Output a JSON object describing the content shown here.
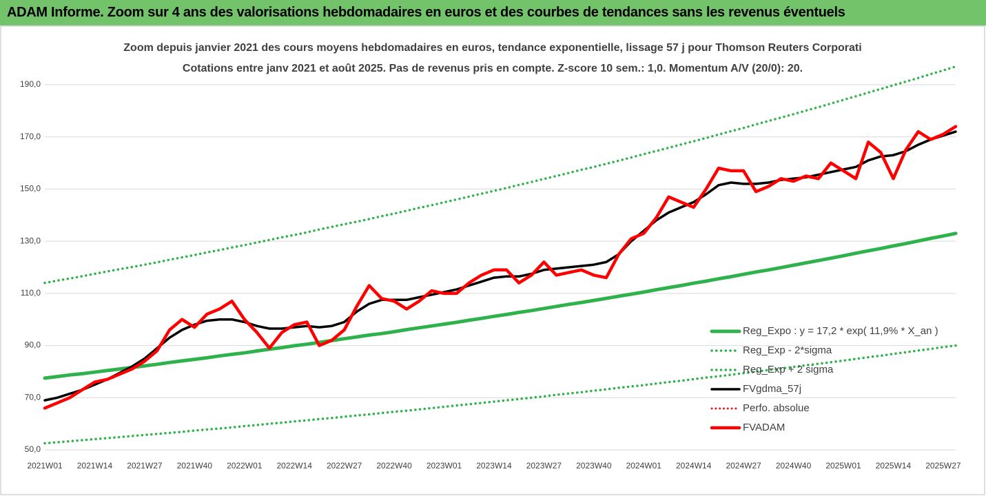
{
  "banner": "ADAM Informe. Zoom sur 4 ans des valorisations hebdomadaires en euros et des courbes de tendances sans les revenus éventuels",
  "chart_data": {
    "type": "line",
    "title": "Zoom depuis janvier 2021 des cours moyens hebdomadaires en euros, tendance exponentielle, lissage 57 j pour Thomson Reuters Corporati",
    "subtitle": "Cotations entre janv 2021 et août 2025. Pas de revenus pris en compte. Z-score 10 sem.: 1,0. Momentum A/V (20/0): 20.",
    "categories": [
      "2021W01",
      null,
      null,
      null,
      "2021W14",
      null,
      null,
      null,
      "2021W27",
      null,
      null,
      null,
      "2021W40",
      null,
      null,
      null,
      "2022W01",
      null,
      null,
      null,
      "2022W14",
      null,
      null,
      null,
      "2022W27",
      null,
      null,
      null,
      "2022W40",
      null,
      null,
      null,
      "2023W01",
      null,
      null,
      null,
      "2023W14",
      null,
      null,
      null,
      "2023W27",
      null,
      null,
      null,
      "2023W40",
      null,
      null,
      null,
      "2024W01",
      null,
      null,
      null,
      "2024W14",
      null,
      null,
      null,
      "2024W27",
      null,
      null,
      null,
      "2024W40",
      null,
      null,
      null,
      "2025W01",
      null,
      null,
      null,
      "2025W14",
      null,
      null,
      null,
      "2025W27",
      null
    ],
    "ylim": [
      50,
      199
    ],
    "yticks": [
      {
        "value": 50,
        "label": "50,0"
      },
      {
        "value": 70,
        "label": "70,0"
      },
      {
        "value": 90,
        "label": "90,0"
      },
      {
        "value": 110,
        "label": "110,0"
      },
      {
        "value": 130,
        "label": "130,0"
      },
      {
        "value": 150,
        "label": "150,0"
      },
      {
        "value": 170,
        "label": "170,0"
      },
      {
        "value": 190,
        "label": "190,0"
      }
    ],
    "grid": true,
    "legend": "lower right",
    "series": [
      {
        "name": "Reg_Expo : y = 17,2 * exp( 11,9% *  X_an )",
        "color": "#2fb24c",
        "dash": "solid",
        "width": 5,
        "values": [
          77.5,
          78.1,
          78.7,
          79.2,
          79.8,
          80.4,
          81.0,
          81.6,
          82.2,
          82.8,
          83.5,
          84.1,
          84.7,
          85.3,
          86.0,
          86.6,
          87.2,
          87.9,
          88.6,
          89.2,
          89.9,
          90.5,
          91.2,
          91.9,
          92.6,
          93.3,
          94.0,
          94.6,
          95.3,
          96.1,
          96.8,
          97.5,
          98.2,
          98.9,
          99.7,
          100.4,
          101.2,
          101.9,
          102.7,
          103.4,
          104.2,
          105.0,
          105.8,
          106.5,
          107.3,
          108.1,
          108.9,
          109.7,
          110.5,
          111.4,
          112.2,
          113.0,
          113.9,
          114.7,
          115.6,
          116.4,
          117.3,
          118.2,
          119.0,
          119.9,
          120.8,
          121.7,
          122.6,
          123.5,
          124.4,
          125.4,
          126.3,
          127.2,
          128.2,
          129.1,
          130.1,
          131.1,
          132.0,
          133.0
        ]
      },
      {
        "name": "Reg_Exp - 2*sigma",
        "color": "#2fb24c",
        "dash": "dotted",
        "width": 3.5,
        "values": [
          52.5,
          52.9,
          53.3,
          53.7,
          54.1,
          54.5,
          54.9,
          55.3,
          55.7,
          56.1,
          56.5,
          56.9,
          57.4,
          57.8,
          58.2,
          58.6,
          59.1,
          59.5,
          60.0,
          60.4,
          60.9,
          61.3,
          61.8,
          62.2,
          62.7,
          63.2,
          63.6,
          64.1,
          64.6,
          65.0,
          65.5,
          66.0,
          66.5,
          67.0,
          67.5,
          68.0,
          68.5,
          69.0,
          69.5,
          70.0,
          70.5,
          71.1,
          71.6,
          72.1,
          72.7,
          73.2,
          73.8,
          74.3,
          74.8,
          75.4,
          76.0,
          76.5,
          77.1,
          77.7,
          78.2,
          78.8,
          79.4,
          80.0,
          80.6,
          81.2,
          81.8,
          82.4,
          83.0,
          83.6,
          84.2,
          84.9,
          85.5,
          86.1,
          86.8,
          87.4,
          88.1,
          88.7,
          89.4,
          90.0
        ]
      },
      {
        "name": "Reg_Exp + 2 sigma",
        "color": "#2fb24c",
        "dash": "dotted",
        "width": 3.5,
        "values": [
          114.0,
          114.9,
          115.7,
          116.6,
          117.5,
          118.4,
          119.3,
          120.1,
          121.0,
          121.9,
          122.9,
          123.8,
          124.7,
          125.7,
          126.6,
          127.6,
          128.5,
          129.5,
          130.5,
          131.5,
          132.4,
          133.4,
          134.5,
          135.5,
          136.5,
          137.5,
          138.5,
          139.6,
          140.6,
          141.7,
          142.8,
          143.8,
          144.9,
          146.0,
          147.1,
          148.2,
          149.3,
          150.4,
          151.6,
          152.7,
          153.9,
          155.0,
          156.2,
          157.4,
          158.5,
          159.7,
          160.9,
          162.1,
          163.4,
          164.6,
          165.8,
          167.1,
          168.3,
          169.6,
          170.9,
          172.2,
          173.4,
          174.8,
          176.1,
          177.4,
          178.7,
          180.1,
          181.4,
          182.8,
          184.2,
          185.6,
          187.0,
          188.4,
          189.8,
          191.2,
          192.6,
          194.1,
          195.5,
          197.0
        ]
      },
      {
        "name": "FVgdma_57j",
        "color": "#000000",
        "dash": "solid",
        "width": 3.5,
        "values": [
          69,
          70,
          71.5,
          73,
          75,
          77,
          79.5,
          82,
          85,
          89,
          93,
          96,
          98,
          99.5,
          100,
          100,
          99,
          97.5,
          96.5,
          96.5,
          97,
          97.5,
          97,
          97.5,
          99,
          103,
          106,
          107.5,
          107.5,
          107.5,
          108.5,
          109.5,
          110.5,
          111.5,
          113,
          114.5,
          116,
          116.5,
          116.5,
          117.5,
          119,
          119.5,
          120,
          120.5,
          121,
          122,
          125,
          130,
          134,
          138,
          141,
          143,
          145,
          148,
          151.5,
          152.5,
          152,
          152,
          152.5,
          153.5,
          154,
          154.5,
          155.5,
          156.5,
          157.5,
          158.5,
          161,
          162.5,
          163,
          164.5,
          167,
          169,
          170.5,
          172
        ]
      },
      {
        "name": "Perfo. absolue",
        "color": "#e02020",
        "dash": "dotted",
        "width": 3
      },
      {
        "name": "FVADAM",
        "color": "#ff0000",
        "dash": "solid",
        "width": 4.5,
        "values": [
          66,
          68,
          70,
          73,
          76,
          77,
          79,
          81,
          84,
          88,
          96,
          100,
          97,
          102,
          104,
          107,
          100,
          95,
          89,
          95,
          98,
          99,
          90,
          92,
          96,
          105,
          113,
          108,
          107,
          104,
          107,
          111,
          110,
          110,
          114,
          117,
          119,
          119,
          114,
          117,
          122,
          117,
          118,
          119,
          117,
          116,
          125,
          131,
          133,
          139,
          147,
          145,
          143,
          150,
          158,
          157,
          157,
          149,
          151,
          154,
          153,
          155,
          154,
          160,
          157,
          154,
          168,
          164,
          154,
          165,
          172,
          169,
          171,
          174
        ]
      }
    ]
  }
}
